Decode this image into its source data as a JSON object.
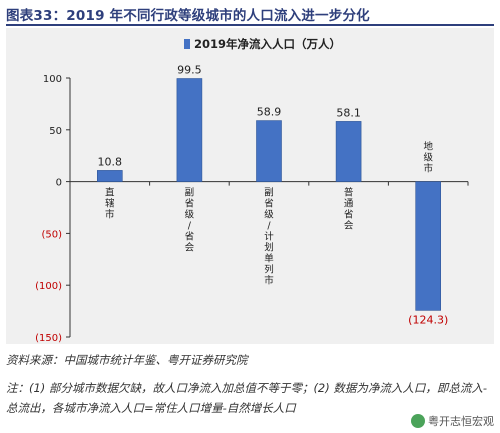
{
  "header": {
    "title": "图表33：2019 年不同行政等级城市的人口流入进一步分化"
  },
  "chart_data": {
    "type": "bar",
    "legend": {
      "label": "2019年净流入人口（万人）",
      "position": "top-center"
    },
    "categories": [
      {
        "label": "直辖市",
        "lines": [
          "直",
          "辖",
          "市"
        ]
      },
      {
        "label": "副省级/省会",
        "lines": [
          "副",
          "省",
          "级",
          "/",
          "省",
          "会"
        ]
      },
      {
        "label": "副省级/计划单列市",
        "lines": [
          "副",
          "省",
          "级",
          "/",
          "计",
          "划",
          "单",
          "列",
          "市"
        ]
      },
      {
        "label": "普通省会",
        "lines": [
          "普",
          "通",
          "省",
          "会"
        ]
      },
      {
        "label": "地级市",
        "lines": [
          "地",
          "级",
          "市"
        ]
      }
    ],
    "values": [
      10.8,
      99.5,
      58.9,
      58.1,
      -124.3
    ],
    "data_labels": [
      "10.8",
      "99.5",
      "58.9",
      "58.1",
      "(124.3)"
    ],
    "ylim": [
      -150,
      100
    ],
    "yticks": [
      100,
      50,
      0,
      -50,
      -100,
      -150
    ],
    "ytick_labels": [
      "100",
      "50",
      "0",
      "(50)",
      "(100)",
      "(150)"
    ],
    "grid": false,
    "colors": {
      "bar": "#4472c4",
      "bar_edge": "#2f5597",
      "negative_text": "#c00000",
      "axis": "#333333"
    }
  },
  "footer": {
    "source": "资料来源：中国城市统计年鉴、粤开证券研究院",
    "note": "注：(1) 部分城市数据欠缺，故人口净流入加总值不等于零；(2) 数据为净流入人口，即总流入-总流出，各城市净流入人口=常住人口增量-自然增长人口",
    "watermark": "粤开志恒宏观"
  }
}
